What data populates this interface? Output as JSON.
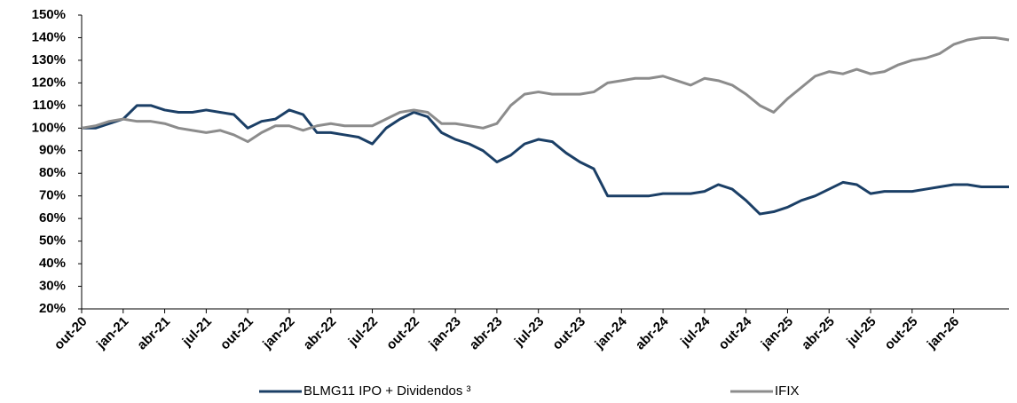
{
  "chart_data": {
    "type": "line",
    "categories": [
      "out-20",
      null,
      null,
      "jan-21",
      null,
      null,
      "abr-21",
      null,
      null,
      "jul-21",
      null,
      null,
      "out-21",
      null,
      null,
      "jan-22",
      null,
      null,
      "abr-22",
      null,
      null,
      "jul-22",
      null,
      null,
      "out-22",
      null,
      null,
      "jan-23",
      null,
      null,
      "abr-23",
      null,
      null,
      "jul-23",
      null,
      null,
      "out-23",
      null,
      null,
      "jan-24",
      null,
      null,
      "abr-24",
      null,
      null,
      "jul-24",
      null,
      null,
      "out-24",
      null,
      null,
      "jan-25",
      null,
      null,
      "abr-25",
      null,
      null,
      "jul-25",
      null,
      null,
      "out-25",
      null,
      null,
      "jan-26",
      null,
      null,
      null,
      null
    ],
    "series": [
      {
        "name": "BLMG11 IPO + Dividendos ³",
        "color": "#1b3f66",
        "values": [
          100,
          100,
          102,
          104,
          110,
          110,
          108,
          107,
          107,
          108,
          107,
          106,
          100,
          103,
          104,
          108,
          106,
          98,
          98,
          97,
          96,
          93,
          100,
          104,
          107,
          105,
          98,
          95,
          93,
          90,
          85,
          88,
          93,
          95,
          94,
          89,
          85,
          82,
          70,
          70,
          70,
          70,
          71,
          71,
          71,
          72,
          75,
          73,
          68,
          62,
          63,
          65,
          68,
          70,
          73,
          76,
          75,
          71,
          72,
          72,
          72,
          73,
          74,
          75,
          75,
          74,
          74,
          74
        ]
      },
      {
        "name": "IFIX",
        "color": "#8c8c8c",
        "values": [
          100,
          101,
          103,
          104,
          103,
          103,
          102,
          100,
          99,
          98,
          99,
          97,
          94,
          98,
          101,
          101,
          99,
          101,
          102,
          101,
          101,
          101,
          104,
          107,
          108,
          107,
          102,
          102,
          101,
          100,
          102,
          110,
          115,
          116,
          115,
          115,
          115,
          116,
          120,
          121,
          122,
          122,
          123,
          121,
          119,
          122,
          121,
          119,
          115,
          110,
          107,
          113,
          118,
          123,
          125,
          124,
          126,
          124,
          125,
          128,
          130,
          131,
          133,
          137,
          139,
          140,
          140,
          139
        ]
      }
    ],
    "ylim": [
      20,
      150
    ],
    "yticks": [
      {
        "value": 20,
        "label": "20%"
      },
      {
        "value": 30,
        "label": "30%"
      },
      {
        "value": 40,
        "label": "40%"
      },
      {
        "value": 50,
        "label": "50%"
      },
      {
        "value": 60,
        "label": "60%"
      },
      {
        "value": 70,
        "label": "70%"
      },
      {
        "value": 80,
        "label": "80%"
      },
      {
        "value": 90,
        "label": "90%"
      },
      {
        "value": 100,
        "label": "100%"
      },
      {
        "value": 110,
        "label": "110%"
      },
      {
        "value": 120,
        "label": "120%"
      },
      {
        "value": 130,
        "label": "130%"
      },
      {
        "value": 140,
        "label": "140%"
      },
      {
        "value": 150,
        "label": "150%"
      }
    ],
    "legend": "bottom"
  }
}
